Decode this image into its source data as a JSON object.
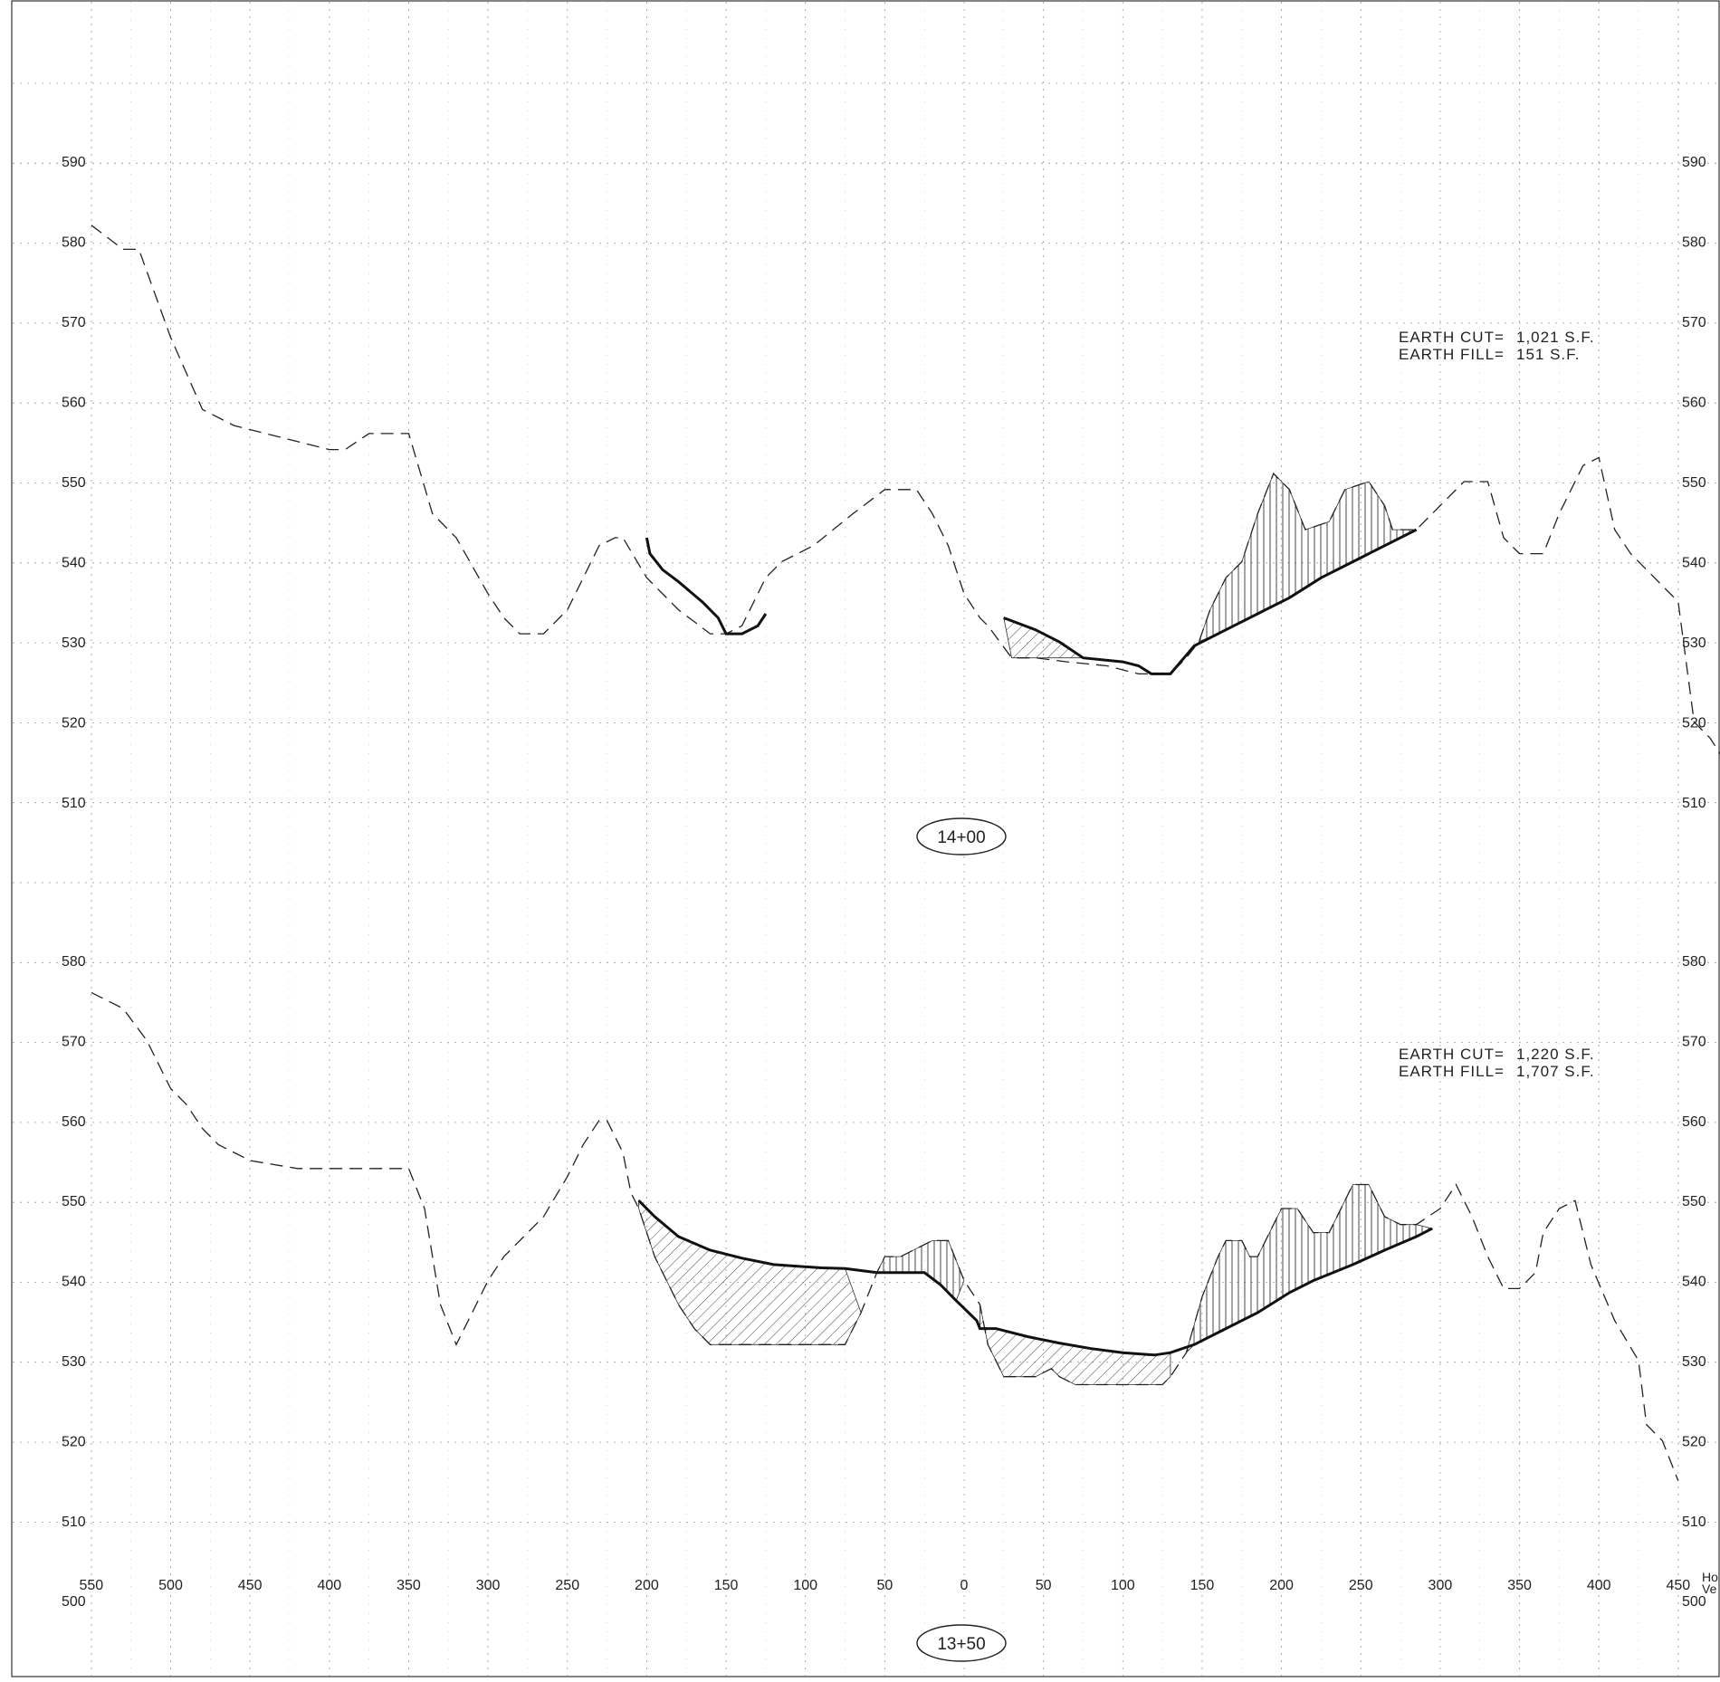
{
  "sections": [
    {
      "station": "14+00",
      "elev_ticks": [
        510,
        520,
        530,
        540,
        550,
        560,
        570,
        580,
        590
      ],
      "earthwork": [
        {
          "label": "EARTH CUT=",
          "value": "1,021 S.F."
        },
        {
          "label": "EARTH FILL=",
          "value": "151 S.F."
        }
      ],
      "existing_ground": [
        [
          -550,
          582
        ],
        [
          -530,
          579
        ],
        [
          -520,
          579
        ],
        [
          -500,
          568
        ],
        [
          -480,
          559
        ],
        [
          -460,
          557
        ],
        [
          -400,
          554
        ],
        [
          -390,
          554
        ],
        [
          -375,
          556
        ],
        [
          -355,
          556
        ],
        [
          -350,
          556
        ],
        [
          -335,
          546
        ],
        [
          -320,
          543
        ],
        [
          -300,
          536
        ],
        [
          -290,
          533
        ],
        [
          -280,
          531
        ],
        [
          -265,
          531
        ],
        [
          -250,
          534
        ],
        [
          -230,
          542
        ],
        [
          -220,
          543
        ],
        [
          -215,
          543
        ],
        [
          -200,
          538
        ],
        [
          -180,
          534
        ],
        [
          -160,
          531
        ],
        [
          -150,
          531
        ],
        [
          -140,
          532
        ],
        [
          -125,
          538
        ],
        [
          -115,
          540
        ],
        [
          -95,
          542
        ],
        [
          -70,
          546
        ],
        [
          -50,
          549
        ],
        [
          -30,
          549
        ],
        [
          -20,
          546
        ],
        [
          -10,
          542
        ],
        [
          0,
          536
        ],
        [
          10,
          533
        ],
        [
          15,
          532
        ],
        [
          30,
          528
        ],
        [
          45,
          528
        ],
        [
          65,
          527.5
        ],
        [
          90,
          527
        ],
        [
          110,
          526
        ],
        [
          125,
          526
        ],
        [
          130,
          526
        ],
        [
          135,
          527
        ],
        [
          140,
          528
        ],
        [
          148,
          530
        ],
        [
          155,
          534
        ],
        [
          165,
          538
        ],
        [
          175,
          540
        ],
        [
          185,
          546
        ],
        [
          195,
          551
        ],
        [
          205,
          549
        ],
        [
          215,
          544
        ],
        [
          230,
          545
        ],
        [
          240,
          549
        ],
        [
          255,
          550
        ],
        [
          265,
          547
        ],
        [
          270,
          544
        ],
        [
          285,
          544
        ],
        [
          300,
          547
        ],
        [
          315,
          550
        ],
        [
          330,
          550
        ],
        [
          340,
          543
        ],
        [
          350,
          541
        ],
        [
          365,
          541
        ],
        [
          375,
          546
        ],
        [
          390,
          552
        ],
        [
          400,
          553
        ],
        [
          410,
          544
        ],
        [
          420,
          541
        ],
        [
          440,
          537
        ],
        [
          450,
          535
        ],
        [
          460,
          520
        ],
        [
          470,
          518
        ],
        [
          480,
          515
        ]
      ],
      "proposed": [
        [
          -200,
          543
        ],
        [
          -198,
          541
        ],
        [
          -190,
          539
        ],
        [
          -180,
          537.5
        ],
        [
          -165,
          535
        ],
        [
          -155,
          533
        ],
        [
          -150,
          531
        ],
        [
          -140,
          531
        ],
        [
          -130,
          532
        ],
        [
          -125,
          533.5
        ]
      ],
      "proposed_right": [
        [
          25,
          533
        ],
        [
          45,
          531.5
        ],
        [
          60,
          530
        ],
        [
          75,
          528
        ],
        [
          100,
          527.5
        ],
        [
          110,
          527
        ],
        [
          118,
          526
        ],
        [
          125,
          526
        ],
        [
          130,
          526
        ],
        [
          145,
          529.5
        ],
        [
          165,
          531.5
        ],
        [
          185,
          533.5
        ],
        [
          205,
          535.5
        ],
        [
          225,
          538
        ],
        [
          245,
          540
        ],
        [
          265,
          542
        ],
        [
          285,
          544
        ]
      ]
    },
    {
      "station": "13+50",
      "elev_ticks": [
        500,
        510,
        520,
        530,
        540,
        550,
        560,
        570,
        580
      ],
      "earthwork": [
        {
          "label": "EARTH CUT=",
          "value": "1,220 S.F."
        },
        {
          "label": "EARTH FILL=",
          "value": "1,707 S.F."
        }
      ],
      "existing_ground": [
        [
          -550,
          576
        ],
        [
          -530,
          574
        ],
        [
          -515,
          570
        ],
        [
          -500,
          564
        ],
        [
          -490,
          562
        ],
        [
          -480,
          559
        ],
        [
          -470,
          557
        ],
        [
          -450,
          555
        ],
        [
          -420,
          554
        ],
        [
          -380,
          554
        ],
        [
          -350,
          554
        ],
        [
          -340,
          549
        ],
        [
          -330,
          537
        ],
        [
          -320,
          532
        ],
        [
          -310,
          536
        ],
        [
          -300,
          540
        ],
        [
          -290,
          543
        ],
        [
          -280,
          545
        ],
        [
          -265,
          548
        ],
        [
          -250,
          553
        ],
        [
          -240,
          557
        ],
        [
          -230,
          560
        ],
        [
          -225,
          560
        ],
        [
          -215,
          556
        ],
        [
          -210,
          551
        ],
        [
          -205,
          549
        ],
        [
          -195,
          543
        ],
        [
          -180,
          537
        ],
        [
          -170,
          534
        ],
        [
          -160,
          532
        ],
        [
          -150,
          532
        ],
        [
          -75,
          532
        ],
        [
          -65,
          536
        ],
        [
          -55,
          541
        ],
        [
          -50,
          543
        ],
        [
          -40,
          543
        ],
        [
          -30,
          544
        ],
        [
          -20,
          545
        ],
        [
          -10,
          545
        ],
        [
          0,
          540
        ],
        [
          10,
          537
        ],
        [
          15,
          532
        ],
        [
          25,
          528
        ],
        [
          45,
          528
        ],
        [
          55,
          529
        ],
        [
          60,
          528
        ],
        [
          70,
          527
        ],
        [
          110,
          527
        ],
        [
          125,
          527
        ],
        [
          130,
          528
        ],
        [
          140,
          531
        ],
        [
          150,
          538
        ],
        [
          160,
          543
        ],
        [
          165,
          545
        ],
        [
          175,
          545
        ],
        [
          180,
          543
        ],
        [
          185,
          543
        ],
        [
          195,
          547
        ],
        [
          200,
          549
        ],
        [
          210,
          549
        ],
        [
          220,
          546
        ],
        [
          230,
          546
        ],
        [
          240,
          550
        ],
        [
          245,
          552
        ],
        [
          255,
          552
        ],
        [
          265,
          548
        ],
        [
          275,
          547
        ],
        [
          285,
          547
        ],
        [
          300,
          549
        ],
        [
          310,
          552
        ],
        [
          320,
          548
        ],
        [
          330,
          543
        ],
        [
          340,
          539
        ],
        [
          350,
          539
        ],
        [
          360,
          541
        ],
        [
          365,
          546
        ],
        [
          375,
          549
        ],
        [
          385,
          550
        ],
        [
          395,
          542
        ],
        [
          410,
          535
        ],
        [
          425,
          530
        ],
        [
          430,
          522
        ],
        [
          440,
          520
        ],
        [
          450,
          515
        ]
      ],
      "proposed": [
        [
          -205,
          550
        ],
        [
          -195,
          548
        ],
        [
          -180,
          545.5
        ],
        [
          -160,
          543.8
        ],
        [
          -140,
          542.8
        ],
        [
          -120,
          542
        ],
        [
          -90,
          541.6
        ],
        [
          -75,
          541.5
        ],
        [
          -55,
          541
        ],
        [
          -25,
          541
        ],
        [
          -15,
          539.5
        ],
        [
          -5,
          537.5
        ],
        [
          8,
          535
        ],
        [
          10,
          534
        ],
        [
          20,
          534
        ],
        [
          40,
          533
        ],
        [
          60,
          532.2
        ],
        [
          80,
          531.5
        ],
        [
          100,
          531
        ],
        [
          120,
          530.7
        ],
        [
          130,
          531
        ],
        [
          145,
          532
        ],
        [
          165,
          534
        ],
        [
          185,
          536
        ],
        [
          205,
          538.5
        ],
        [
          220,
          540
        ],
        [
          245,
          542
        ],
        [
          265,
          543.8
        ],
        [
          285,
          545.5
        ],
        [
          295,
          546.5
        ]
      ]
    }
  ],
  "x_axis": {
    "ticks": [
      "550",
      "500",
      "450",
      "400",
      "350",
      "300",
      "250",
      "200",
      "150",
      "100",
      "50",
      "0",
      "50",
      "100",
      "150",
      "200",
      "250",
      "300",
      "350",
      "400",
      "450"
    ],
    "scale_note": [
      "Ho",
      "Ve"
    ]
  }
}
